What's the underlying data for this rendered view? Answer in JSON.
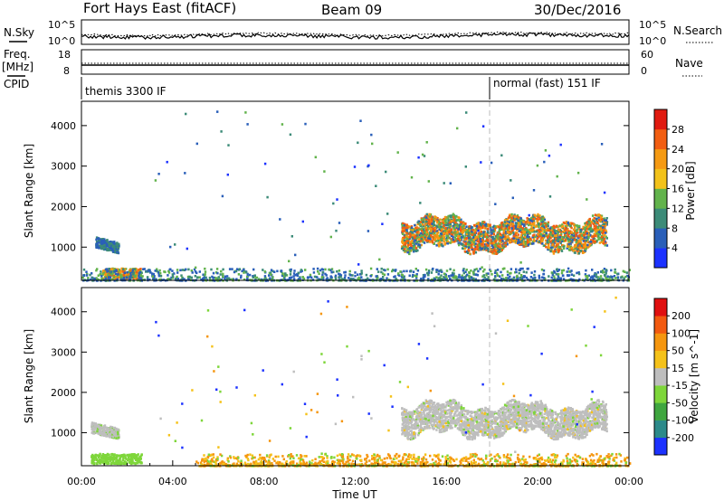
{
  "header": {
    "station": "Fort Hays East (fitACF)",
    "beam": "Beam 09",
    "date": "30/Dec/2016"
  },
  "noise_panel": {
    "left_label": "N.Sky",
    "right_label": "N.Search",
    "left_ticks": [
      "10^5",
      "10^0"
    ],
    "right_ticks": [
      "10^5",
      "10^0"
    ]
  },
  "freq_panel": {
    "left_label_1": "Freq.",
    "left_label_2": "[MHz]",
    "right_label": "Nave",
    "left_ticks": [
      "18",
      "8"
    ],
    "right_ticks": [
      "60",
      "0"
    ]
  },
  "cpid": {
    "label": "CPID",
    "segments": [
      {
        "start_hour": 0,
        "text": "themis 3300 IF"
      },
      {
        "start_hour": 18,
        "text": "normal (fast) 151 IF"
      }
    ]
  },
  "chart_data": [
    {
      "type": "heatmap",
      "title": "",
      "quantity": "Power",
      "xlabel": "",
      "ylabel": "Slant Range [km]",
      "xlim_hours": [
        0,
        24
      ],
      "ylim": [
        180,
        4600
      ],
      "yticks": [
        1000,
        2000,
        3000,
        4000
      ],
      "colorbar": {
        "label": "Power [dB]",
        "range": [
          0,
          32
        ],
        "tick_values": [
          4,
          8,
          12,
          16,
          20,
          24,
          28
        ],
        "tick_labels": [
          "4",
          "8",
          "12",
          "16",
          "20",
          "24",
          "28"
        ],
        "colors": [
          "#1c32ff",
          "#2a5fb9",
          "#3c8b78",
          "#62b34c",
          "#f2c21a",
          "#f59a13",
          "#f25e12",
          "#e01a10"
        ]
      },
      "scatter_regions": [
        {
          "name": "early echo band",
          "x_hours": [
            0.6,
            1.6
          ],
          "range_km": [
            900,
            1300
          ]
        },
        {
          "name": "early near-range echoes",
          "x_hours": [
            0.9,
            2.6
          ],
          "range_km": [
            250,
            500
          ]
        },
        {
          "name": "near-range ground scatter",
          "x_hours": [
            0,
            24
          ],
          "range_km": [
            200,
            500
          ]
        },
        {
          "name": "main echo band",
          "x_hours": [
            14,
            23
          ],
          "range_km": [
            1000,
            1800
          ]
        },
        {
          "name": "sparse points",
          "x_hours": [
            3,
            23.5
          ],
          "range_km": [
            500,
            4400
          ]
        }
      ]
    },
    {
      "type": "heatmap",
      "title": "",
      "quantity": "Velocity",
      "xlabel": "Time UT",
      "ylabel": "Slant Range [km]",
      "xlim_hours": [
        0,
        24
      ],
      "xtick_labels": [
        "00:00",
        "04:00",
        "08:00",
        "12:00",
        "16:00",
        "20:00",
        "00:00"
      ],
      "ylim": [
        180,
        4600
      ],
      "yticks": [
        1000,
        2000,
        3000,
        4000
      ],
      "colorbar": {
        "label": "Velocity [m s^-1]",
        "tick_labels": [
          "200",
          "100",
          "50",
          "15",
          "-15",
          "-50",
          "-100",
          "-200"
        ],
        "colors": [
          "#1c32ff",
          "#2c8a8a",
          "#3fa63f",
          "#7ed63a",
          "#bebebe",
          "#f5c21a",
          "#f5960f",
          "#f25a10",
          "#e01010"
        ]
      },
      "scatter_regions": [
        {
          "name": "early echo band",
          "x_hours": [
            0.4,
            1.6
          ],
          "range_km": [
            900,
            1300
          ],
          "dominant": "gray"
        },
        {
          "name": "early near-range echoes",
          "x_hours": [
            0.4,
            2.6
          ],
          "range_km": [
            250,
            500
          ],
          "dominant": "green"
        },
        {
          "name": "near-range scatter",
          "x_hours": [
            5,
            24
          ],
          "range_km": [
            200,
            500
          ],
          "dominant": "orange"
        },
        {
          "name": "main echo band",
          "x_hours": [
            14,
            23
          ],
          "range_km": [
            1000,
            1800
          ],
          "dominant": "gray"
        },
        {
          "name": "sparse points",
          "x_hours": [
            3,
            23.5
          ],
          "range_km": [
            500,
            4400
          ],
          "dominant": "mixed"
        }
      ]
    }
  ]
}
